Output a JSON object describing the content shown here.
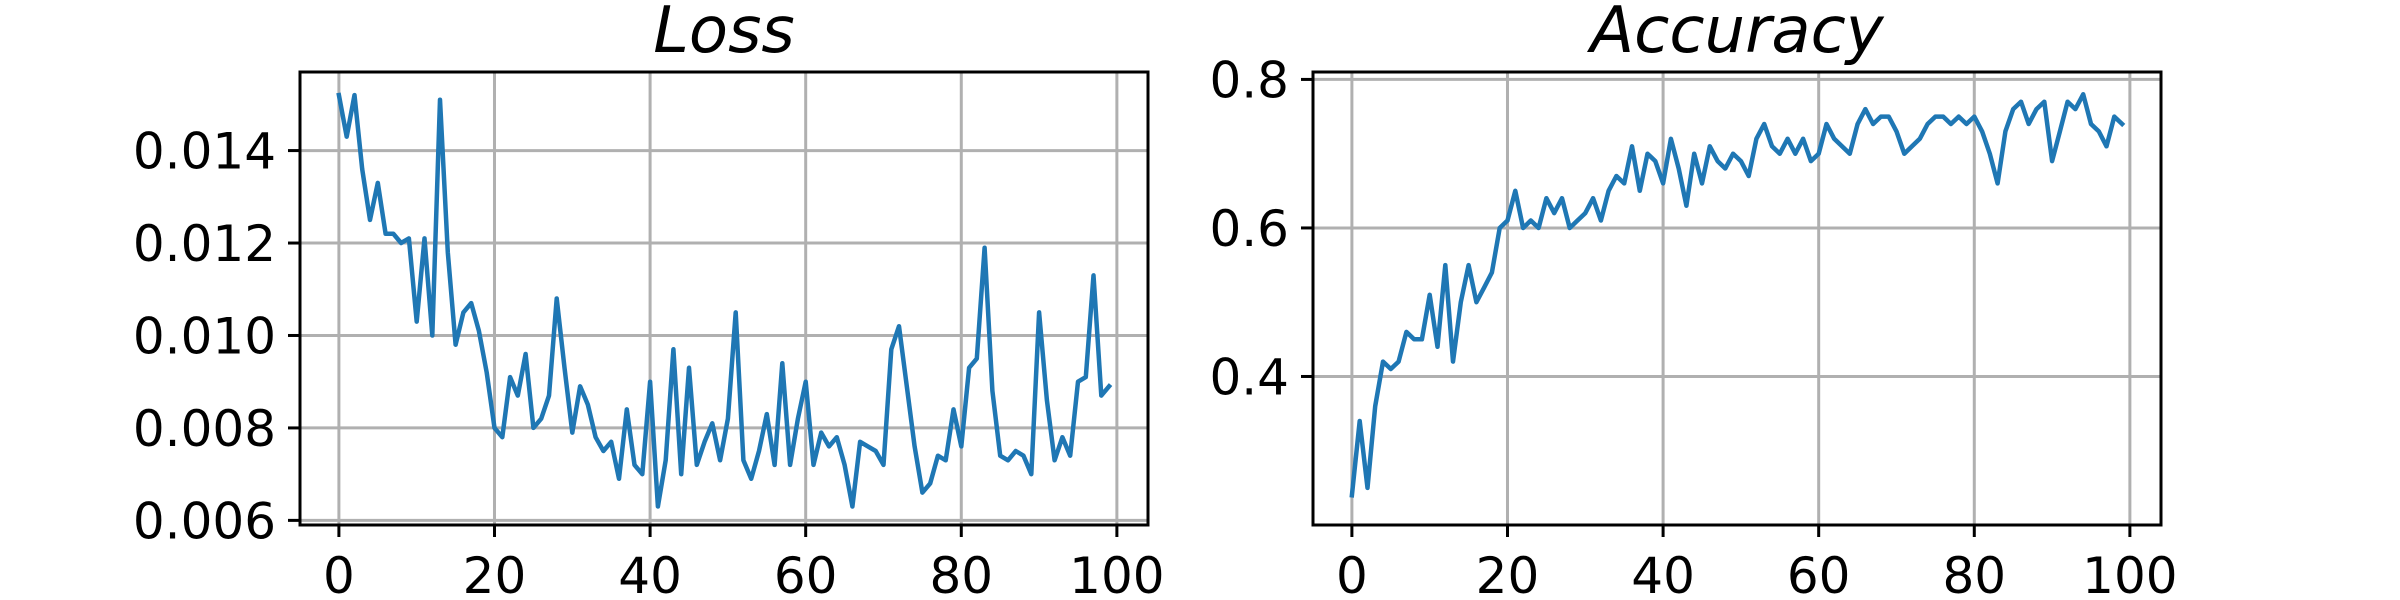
{
  "colors": {
    "series": "#1f77b4",
    "grid": "#b0b0b0",
    "axis": "#000000",
    "background": "#ffffff"
  },
  "chart_data": [
    {
      "type": "line",
      "title": "Loss",
      "xlabel": "",
      "ylabel": "",
      "xlim": [
        -5,
        104
      ],
      "ylim": [
        0.0059,
        0.0157
      ],
      "xticks": [
        0,
        20,
        40,
        60,
        80,
        100
      ],
      "xtick_labels": [
        "0",
        "20",
        "40",
        "60",
        "80",
        "100"
      ],
      "yticks": [
        0.006,
        0.008,
        0.01,
        0.012,
        0.014
      ],
      "ytick_labels": [
        "0.006",
        "0.008",
        "0.010",
        "0.012",
        "0.014"
      ],
      "grid": true,
      "series": [
        {
          "x": [
            0,
            1,
            2,
            3,
            4,
            5,
            6,
            7,
            8,
            9,
            10,
            11,
            12,
            13,
            14,
            15,
            16,
            17,
            18,
            19,
            20,
            21,
            22,
            23,
            24,
            25,
            26,
            27,
            28,
            29,
            30,
            31,
            32,
            33,
            34,
            35,
            36,
            37,
            38,
            39,
            40,
            41,
            42,
            43,
            44,
            45,
            46,
            47,
            48,
            49,
            50,
            51,
            52,
            53,
            54,
            55,
            56,
            57,
            58,
            59,
            60,
            61,
            62,
            63,
            64,
            65,
            66,
            67,
            68,
            69,
            70,
            71,
            72,
            73,
            74,
            75,
            76,
            77,
            78,
            79,
            80,
            81,
            82,
            83,
            84,
            85,
            86,
            87,
            88,
            89,
            90,
            91,
            92,
            93,
            94,
            95,
            96,
            97,
            98,
            99
          ],
          "y": [
            0.0152,
            0.0143,
            0.0152,
            0.0136,
            0.0125,
            0.0133,
            0.0122,
            0.0122,
            0.012,
            0.0121,
            0.0103,
            0.0121,
            0.01,
            0.0151,
            0.0118,
            0.0098,
            0.0105,
            0.0107,
            0.0101,
            0.0092,
            0.008,
            0.0078,
            0.0091,
            0.0087,
            0.0096,
            0.008,
            0.0082,
            0.0087,
            0.0108,
            0.0093,
            0.0079,
            0.0089,
            0.0085,
            0.0078,
            0.0075,
            0.0077,
            0.0069,
            0.0084,
            0.0072,
            0.007,
            0.009,
            0.0063,
            0.0073,
            0.0097,
            0.007,
            0.0093,
            0.0072,
            0.0077,
            0.0081,
            0.0073,
            0.0082,
            0.0105,
            0.0073,
            0.0069,
            0.0075,
            0.0083,
            0.0072,
            0.0094,
            0.0072,
            0.0082,
            0.009,
            0.0072,
            0.0079,
            0.0076,
            0.0078,
            0.0072,
            0.0063,
            0.0077,
            0.0076,
            0.0075,
            0.0072,
            0.0097,
            0.0102,
            0.0089,
            0.0076,
            0.0066,
            0.0068,
            0.0074,
            0.0073,
            0.0084,
            0.0076,
            0.0093,
            0.0095,
            0.0119,
            0.0088,
            0.0074,
            0.0073,
            0.0075,
            0.0074,
            0.007,
            0.0105,
            0.0086,
            0.0073,
            0.0078,
            0.0074,
            0.009,
            0.0091,
            0.0113,
            0.0087,
            0.0089
          ]
        }
      ]
    },
    {
      "type": "line",
      "title": "Accuracy",
      "xlabel": "",
      "ylabel": "",
      "xlim": [
        -5,
        104
      ],
      "ylim": [
        0.2,
        0.81
      ],
      "xticks": [
        0,
        20,
        40,
        60,
        80,
        100
      ],
      "xtick_labels": [
        "0",
        "20",
        "40",
        "60",
        "80",
        "100"
      ],
      "yticks": [
        0.4,
        0.6,
        0.8
      ],
      "ytick_labels": [
        "0.4",
        "0.6",
        "0.8"
      ],
      "grid": true,
      "series": [
        {
          "x": [
            0,
            1,
            2,
            3,
            4,
            5,
            6,
            7,
            8,
            9,
            10,
            11,
            12,
            13,
            14,
            15,
            16,
            17,
            18,
            19,
            20,
            21,
            22,
            23,
            24,
            25,
            26,
            27,
            28,
            29,
            30,
            31,
            32,
            33,
            34,
            35,
            36,
            37,
            38,
            39,
            40,
            41,
            42,
            43,
            44,
            45,
            46,
            47,
            48,
            49,
            50,
            51,
            52,
            53,
            54,
            55,
            56,
            57,
            58,
            59,
            60,
            61,
            62,
            63,
            64,
            65,
            66,
            67,
            68,
            69,
            70,
            71,
            72,
            73,
            74,
            75,
            76,
            77,
            78,
            79,
            80,
            81,
            82,
            83,
            84,
            85,
            86,
            87,
            88,
            89,
            90,
            91,
            92,
            93,
            94,
            95,
            96,
            97,
            98,
            99
          ],
          "y": [
            0.24,
            0.34,
            0.25,
            0.36,
            0.42,
            0.41,
            0.42,
            0.46,
            0.45,
            0.45,
            0.51,
            0.44,
            0.55,
            0.42,
            0.5,
            0.55,
            0.5,
            0.52,
            0.54,
            0.6,
            0.61,
            0.65,
            0.6,
            0.61,
            0.6,
            0.64,
            0.62,
            0.64,
            0.6,
            0.61,
            0.62,
            0.64,
            0.61,
            0.65,
            0.67,
            0.66,
            0.71,
            0.65,
            0.7,
            0.69,
            0.66,
            0.72,
            0.68,
            0.63,
            0.7,
            0.66,
            0.71,
            0.69,
            0.68,
            0.7,
            0.69,
            0.67,
            0.72,
            0.74,
            0.71,
            0.7,
            0.72,
            0.7,
            0.72,
            0.69,
            0.7,
            0.74,
            0.72,
            0.71,
            0.7,
            0.74,
            0.76,
            0.74,
            0.75,
            0.75,
            0.73,
            0.7,
            0.71,
            0.72,
            0.74,
            0.75,
            0.75,
            0.74,
            0.75,
            0.74,
            0.75,
            0.73,
            0.7,
            0.66,
            0.73,
            0.76,
            0.77,
            0.74,
            0.76,
            0.77,
            0.69,
            0.73,
            0.77,
            0.76,
            0.78,
            0.74,
            0.73,
            0.71,
            0.75,
            0.74
          ]
        }
      ]
    }
  ]
}
